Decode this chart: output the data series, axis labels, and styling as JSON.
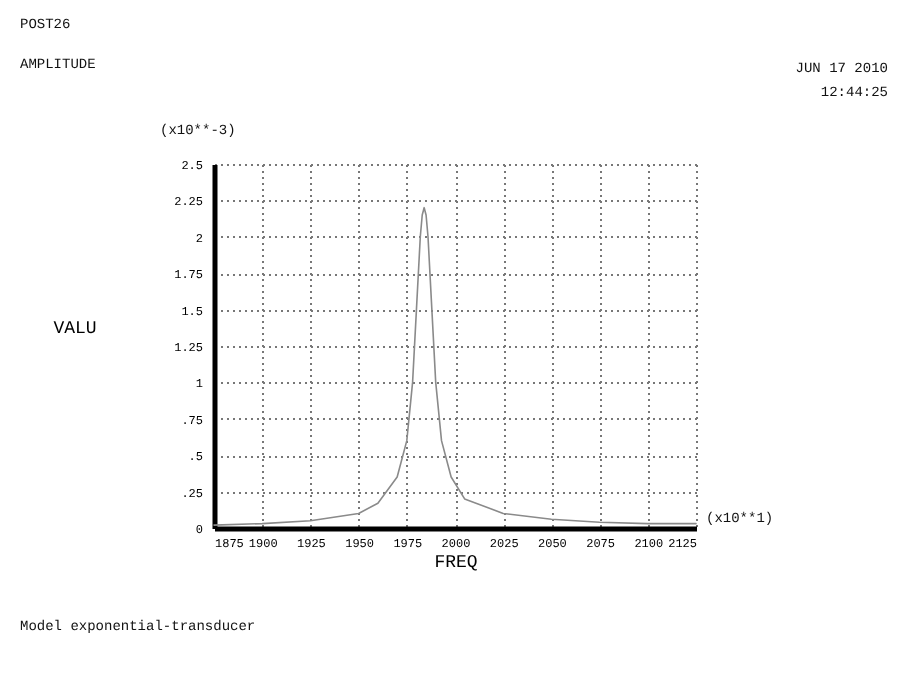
{
  "chart_data": {
    "type": "line",
    "title": "POST26",
    "subtitle": "AMPLITUDE",
    "xlabel": "FREQ",
    "ylabel": "VALU",
    "x": [
      1875,
      1900,
      1925,
      1950,
      1960,
      1970,
      1975,
      1978,
      1980,
      1982,
      1983,
      1984,
      1985,
      1986,
      1988,
      1990,
      1993,
      1998,
      2005,
      2025,
      2050,
      2075,
      2100,
      2125
    ],
    "series": [
      {
        "color": "#8a8a8a",
        "values": [
          0.02,
          0.03,
          0.05,
          0.1,
          0.17,
          0.35,
          0.6,
          1.0,
          1.5,
          2.0,
          2.15,
          2.2,
          2.15,
          2.0,
          1.5,
          1.0,
          0.6,
          0.35,
          0.2,
          0.1,
          0.06,
          0.04,
          0.03,
          0.03
        ]
      }
    ],
    "xlim": [
      1875,
      2125
    ],
    "xticks": [
      1875,
      1900,
      1925,
      1950,
      1975,
      2000,
      2025,
      2050,
      2075,
      2100,
      2125
    ],
    "ylim": [
      0,
      2.5
    ],
    "yticks": [
      0,
      {
        "value": 0.25,
        "label": ".25"
      },
      {
        "value": 0.5,
        "label": ".5"
      },
      {
        "value": 0.75,
        "label": ".75"
      },
      1,
      1.25,
      1.5,
      1.75,
      2,
      2.25,
      2.5
    ],
    "grid": true,
    "legend": false,
    "marker": "none",
    "line_style": "solid",
    "annotations": [
      "(x10**-3)",
      "(x10**1)",
      "JUN 17 2010",
      "12:44:25",
      "Model exponential-transducer"
    ]
  }
}
